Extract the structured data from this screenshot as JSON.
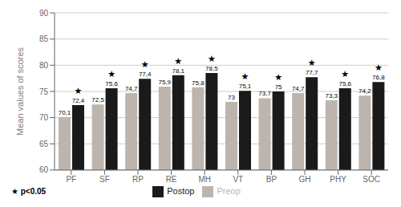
{
  "chart_data": {
    "type": "bar",
    "categories": [
      "PF",
      "SF",
      "RP",
      "RE",
      "MH",
      "VT",
      "BP",
      "GH",
      "PHY",
      "SOC"
    ],
    "series": [
      {
        "name": "Preop",
        "color": "#bdb5ad",
        "values": [
          70.1,
          72.5,
          74.7,
          75.9,
          75.8,
          73.0,
          73.7,
          74.7,
          73.3,
          74.2
        ],
        "value_labels": [
          "70,1",
          "72,5",
          "74,7",
          "75,9",
          "75,8",
          "73",
          "73,7",
          "74,7",
          "73,3",
          "74,2"
        ]
      },
      {
        "name": "Postop",
        "color": "#1a1a1a",
        "values": [
          72.4,
          75.6,
          77.4,
          78.1,
          78.5,
          75.1,
          75.0,
          77.7,
          75.6,
          76.8
        ],
        "value_labels": [
          "72,4",
          "75,6",
          "77,4",
          "78,1",
          "78,5",
          "75,1",
          "75",
          "77,7",
          "75,6",
          "76,8"
        ],
        "significance": [
          "★",
          "★",
          "★",
          "★",
          "★",
          "★",
          "★",
          "★",
          "★",
          "★"
        ]
      }
    ],
    "ylabel": "Mean values of scores",
    "ylim": [
      60,
      90
    ],
    "yticks": [
      60,
      65,
      70,
      75,
      80,
      85,
      90
    ],
    "grid": true,
    "legend": "bottom",
    "data_labels": true,
    "annotations": [
      "★ p<0.05"
    ]
  }
}
